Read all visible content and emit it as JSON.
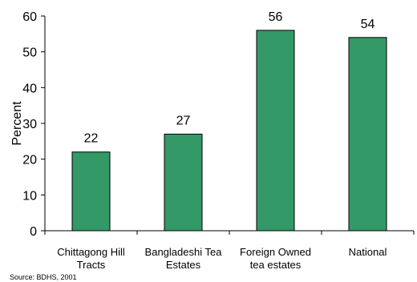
{
  "chart_data": {
    "type": "bar",
    "categories": [
      [
        "Chittagong Hill",
        "Tracts"
      ],
      [
        "Bangladeshi Tea",
        "Estates"
      ],
      [
        "Foreign Owned",
        "tea estates"
      ],
      [
        "National"
      ]
    ],
    "values": [
      22,
      27,
      56,
      54
    ],
    "ylabel": "Percent",
    "ylim": [
      0,
      60
    ],
    "yticks": [
      0,
      10,
      20,
      30,
      40,
      50,
      60
    ],
    "bar_color": "#339966",
    "grid": false,
    "source": "Source: BDHS, 2001"
  }
}
